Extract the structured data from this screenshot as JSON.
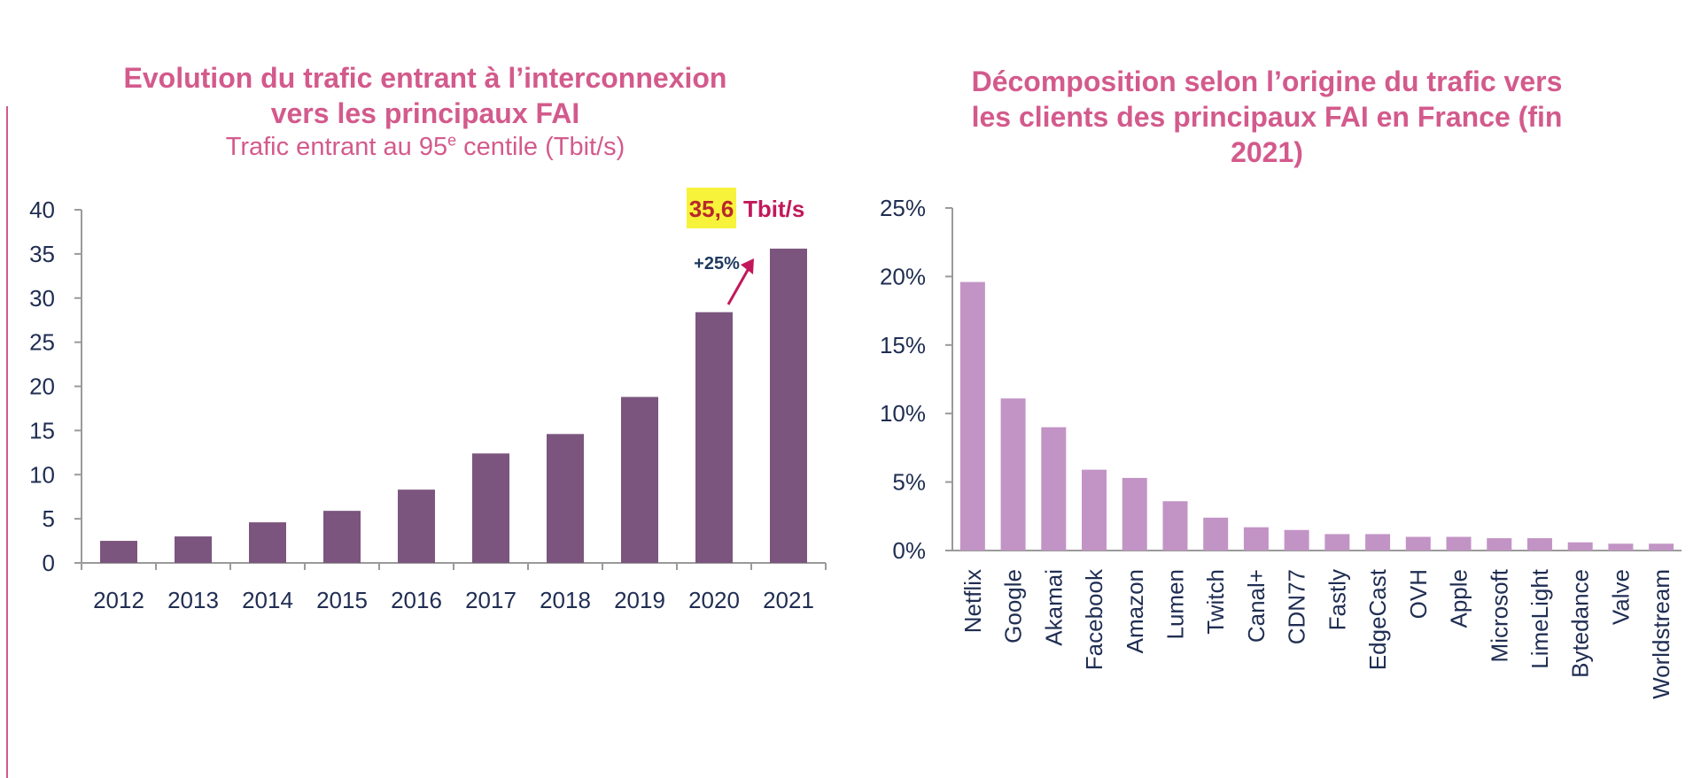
{
  "chart_data": [
    {
      "type": "bar",
      "title_lines": [
        "Evolution du trafic entrant à l’interconnexion",
        "vers les principaux FAI"
      ],
      "subtitle": "Trafic entrant au 95e centile (Tbit/s)",
      "categories": [
        "2012",
        "2013",
        "2014",
        "2015",
        "2016",
        "2017",
        "2018",
        "2019",
        "2020",
        "2021"
      ],
      "values": [
        2.5,
        3.0,
        4.6,
        5.9,
        8.3,
        12.4,
        14.6,
        18.8,
        28.4,
        35.6
      ],
      "ylim": [
        0,
        40
      ],
      "yticks": [
        0,
        5,
        10,
        15,
        20,
        25,
        30,
        35,
        40
      ],
      "ytick_labels": [
        "0",
        "5",
        "10",
        "15",
        "20",
        "25",
        "30",
        "35",
        "40"
      ],
      "bar_color": "#7b557e",
      "annotation": {
        "value_text": "35,6",
        "unit_text": "Tbit/s",
        "growth_text": "+25%",
        "highlight_color": "#f7f23a",
        "arrow_color": "#c2185b"
      },
      "grid": false
    },
    {
      "type": "bar",
      "title_lines": [
        "Décomposition selon l’origine du trafic vers",
        "les clients des principaux FAI en France (fin",
        "2021)"
      ],
      "categories": [
        "Netflix",
        "Google",
        "Akamai",
        "Facebook",
        "Amazon",
        "Lumen",
        "Twitch",
        "Canal+",
        "CDN77",
        "Fastly",
        "EdgeCast",
        "OVH",
        "Apple",
        "Microsoft",
        "LimeLight",
        "Bytedance",
        "Valve",
        "Worldstream"
      ],
      "values": [
        19.6,
        11.1,
        9.0,
        5.9,
        5.3,
        3.6,
        2.4,
        1.7,
        1.5,
        1.2,
        1.2,
        1.0,
        1.0,
        0.9,
        0.9,
        0.6,
        0.5,
        0.5
      ],
      "ylim": [
        0,
        25
      ],
      "yticks": [
        0,
        5,
        10,
        15,
        20,
        25
      ],
      "ytick_labels": [
        "0%",
        "5%",
        "10%",
        "15%",
        "20%",
        "25%"
      ],
      "bar_color": "#c294c5",
      "grid": false
    }
  ]
}
